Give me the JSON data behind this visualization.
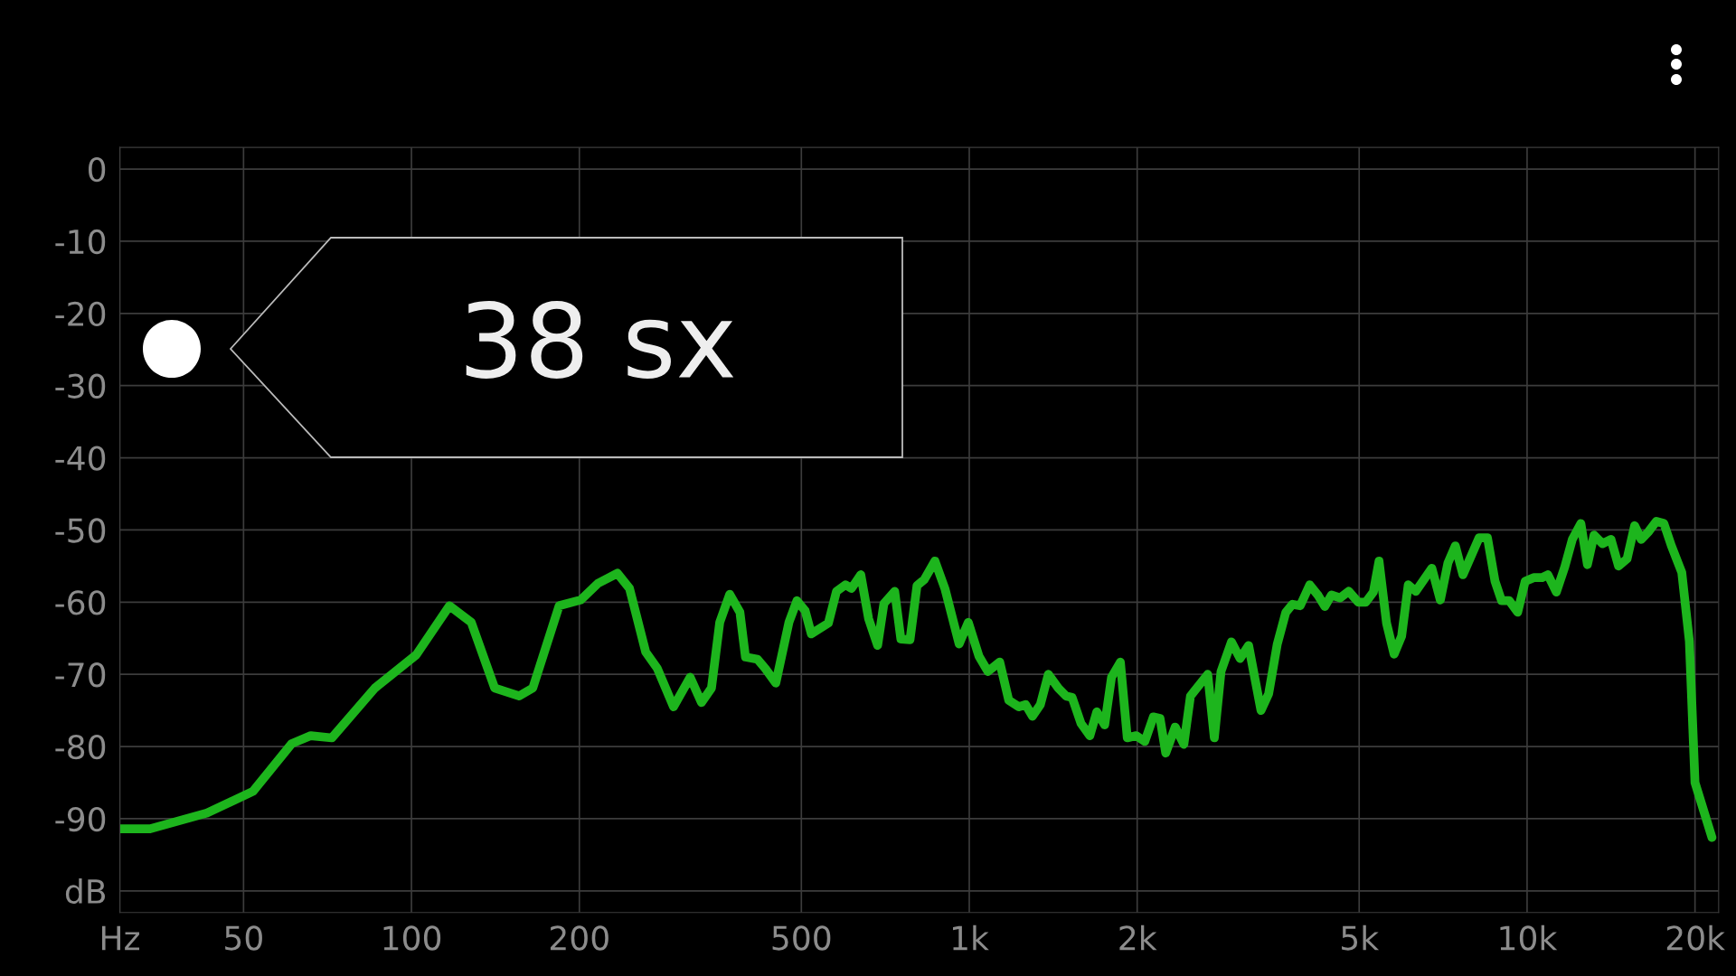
{
  "chart_data": {
    "type": "line",
    "log": "x",
    "grid": true,
    "marker": "none",
    "line_style": "solid",
    "xlim": [
      30,
      22050
    ],
    "ylim": [
      -103,
      3
    ],
    "xticks": [
      {
        "value": 30,
        "label": "Hz"
      },
      50,
      100,
      200,
      500,
      {
        "value": 1000,
        "label": "1k"
      },
      {
        "value": 2000,
        "label": "2k"
      },
      {
        "value": 5000,
        "label": "5k"
      },
      {
        "value": 10000,
        "label": "10k"
      },
      {
        "value": 20000,
        "label": "20k"
      }
    ],
    "yticks": [
      0,
      -10,
      -20,
      -30,
      -40,
      -50,
      -60,
      -70,
      -80,
      -90,
      {
        "value": -100,
        "label": "dB"
      }
    ],
    "annotations": [
      "38 sx"
    ],
    "x": [
      30,
      34,
      43,
      52,
      61,
      66,
      72,
      86,
      102,
      117,
      128,
      141,
      156,
      165,
      184,
      201,
      216,
      234,
      246,
      263,
      276,
      295,
      316,
      331,
      345,
      357,
      372,
      388,
      397,
      417,
      431,
      450,
      475,
      491,
      508,
      521,
      559,
      578,
      600,
      615,
      639,
      660,
      685,
      703,
      735,
      754,
      783,
      806,
      830,
      868,
      905,
      959,
      996,
      1041,
      1080,
      1134,
      1177,
      1227,
      1262,
      1298,
      1341,
      1386,
      1444,
      1491,
      1529,
      1586,
      1645,
      1693,
      1749,
      1799,
      1866,
      1920,
      1992,
      2064,
      2138,
      2198,
      2250,
      2340,
      2425,
      2492,
      2676,
      2750,
      2827,
      2951,
      3058,
      3168,
      3334,
      3441,
      3566,
      3694,
      3797,
      3920,
      4077,
      4224,
      4339,
      4460,
      4621,
      4788,
      4981,
      5138,
      5302,
      5427,
      5598,
      5776,
      5958,
      6123,
      6318,
      6749,
      6990,
      7211,
      7437,
      7674,
      8200,
      8492,
      8760,
      9001,
      9289,
      9618,
      9922,
      10275,
      10642,
      10895,
      11283,
      11684,
      12055,
      12485,
      12829,
      13185,
      13653,
      14139,
      14588,
      15110,
      15589,
      16018,
      16524,
      17049,
      17588,
      18144,
      18939,
      19540,
      20000,
      21450
    ],
    "series": [
      {
        "color": "#1db51d",
        "values": [
          -91.4,
          -91.4,
          -89.2,
          -86.2,
          -79.6,
          -78.5,
          -78.8,
          -71.9,
          -67.3,
          -60.5,
          -62.8,
          -71.9,
          -73.0,
          -71.9,
          -60.5,
          -59.7,
          -57.4,
          -56.0,
          -58.1,
          -66.9,
          -69.2,
          -74.5,
          -70.4,
          -73.9,
          -71.9,
          -62.8,
          -58.9,
          -61.4,
          -67.6,
          -67.9,
          -69.2,
          -71.2,
          -62.8,
          -59.8,
          -61.2,
          -64.4,
          -62.9,
          -58.5,
          -57.6,
          -58.1,
          -56.2,
          -62.3,
          -66.0,
          -60.2,
          -58.5,
          -65.1,
          -65.2,
          -57.7,
          -56.9,
          -54.3,
          -58.2,
          -65.8,
          -62.8,
          -67.5,
          -69.6,
          -68.3,
          -73.6,
          -74.5,
          -74.2,
          -75.8,
          -74.2,
          -70.0,
          -71.9,
          -73.0,
          -73.2,
          -76.8,
          -78.5,
          -75.2,
          -77.0,
          -70.4,
          -68.3,
          -78.8,
          -78.5,
          -79.3,
          -75.9,
          -76.1,
          -80.9,
          -77.3,
          -79.7,
          -73.0,
          -70.0,
          -78.8,
          -69.6,
          -65.5,
          -67.8,
          -66.0,
          -75.0,
          -72.7,
          -65.8,
          -61.4,
          -60.3,
          -60.5,
          -57.6,
          -59.1,
          -60.6,
          -59.0,
          -59.4,
          -58.5,
          -60.0,
          -60.0,
          -58.6,
          -54.3,
          -62.9,
          -67.2,
          -64.7,
          -57.6,
          -58.5,
          -55.3,
          -59.7,
          -54.6,
          -52.2,
          -56.2,
          -51.1,
          -51.1,
          -57.1,
          -59.8,
          -59.8,
          -61.4,
          -57.1,
          -56.6,
          -56.6,
          -56.2,
          -58.6,
          -55.1,
          -51.3,
          -49.1,
          -54.8,
          -50.7,
          -51.9,
          -51.3,
          -55.0,
          -54.0,
          -49.4,
          -51.3,
          -50.2,
          -48.8,
          -49.1,
          -52.2,
          -55.9,
          -65.4,
          -85.0,
          -92.6
        ]
      }
    ]
  }
}
